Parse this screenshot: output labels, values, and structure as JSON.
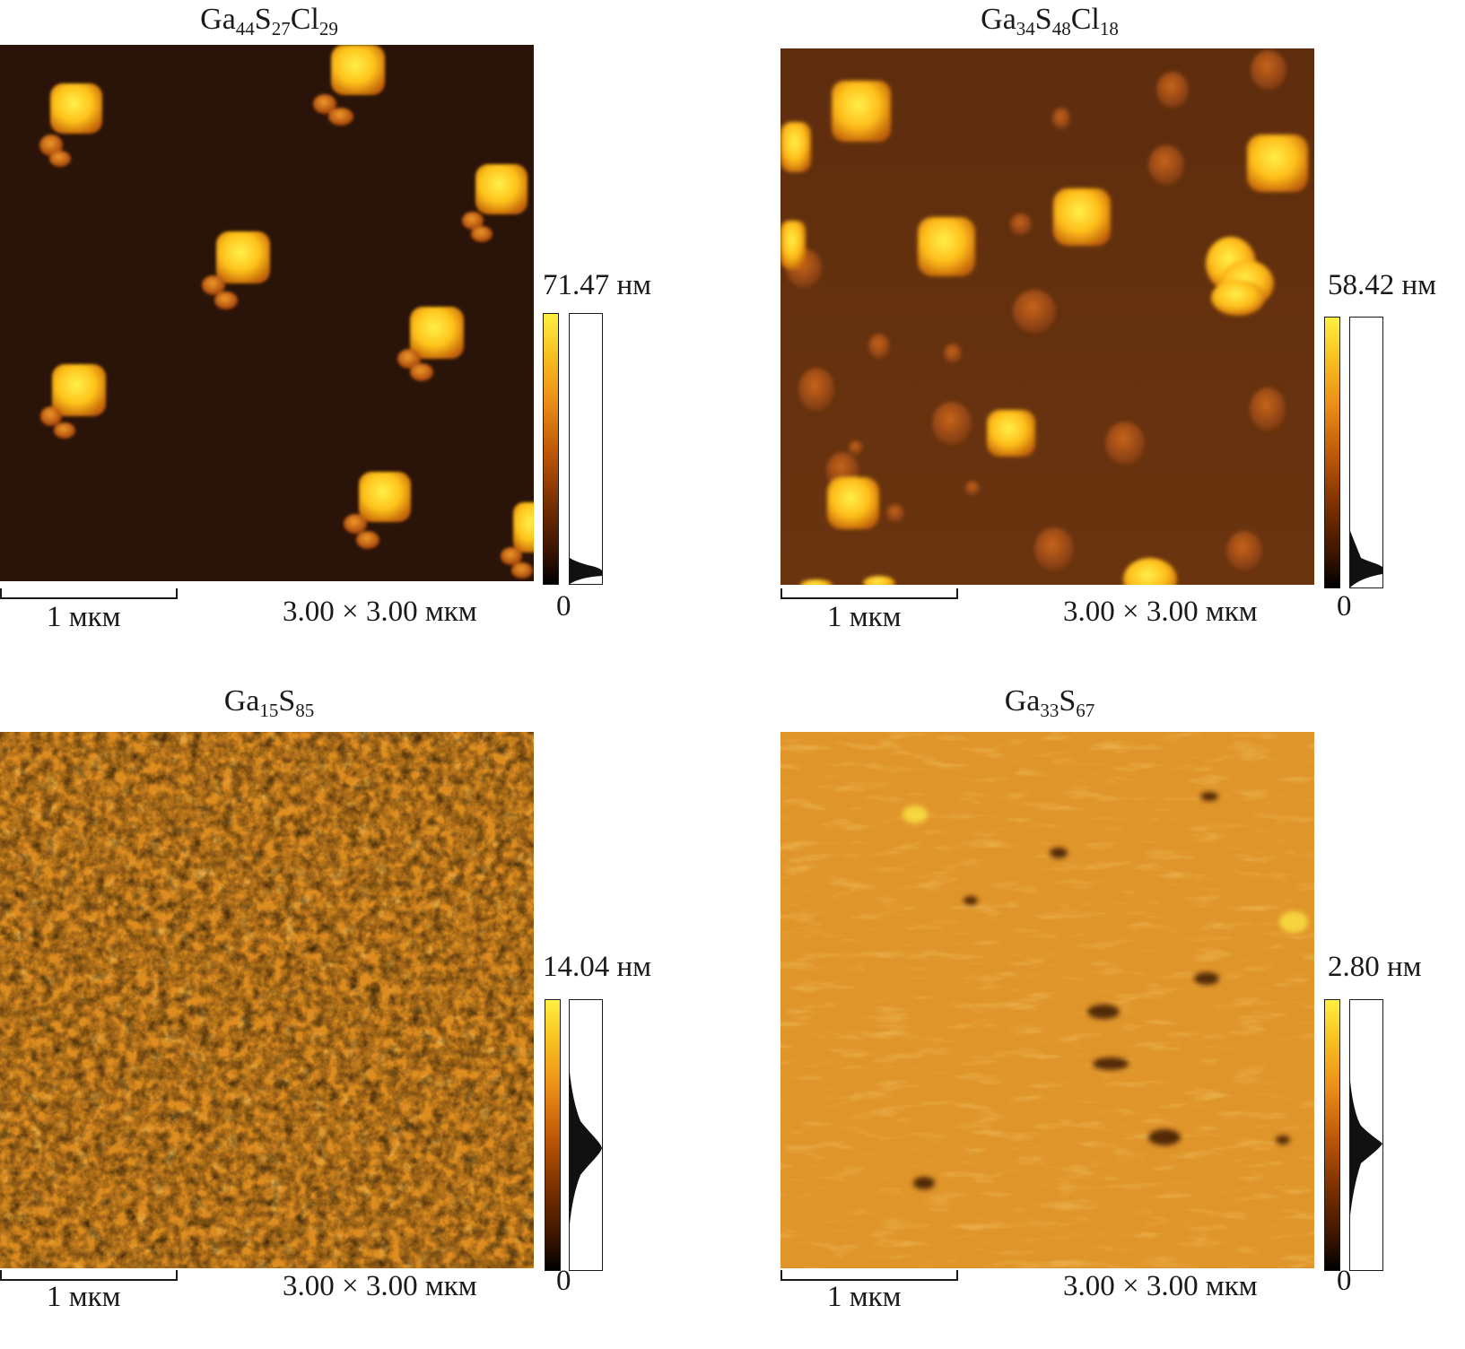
{
  "panels": [
    {
      "title": {
        "base1": "Ga",
        "sub1": "44",
        "base2": "S",
        "sub2": "27",
        "base3": "Cl",
        "sub3": "29"
      },
      "zmax_label": "71.47 нм",
      "zmin_label": "0",
      "scale_label": "1 мкм",
      "dims_label": "3.00 × 3.00 мкм",
      "surface": "sparse-square-islands",
      "background_color": "#2a1308"
    },
    {
      "title": {
        "base1": "Ga",
        "sub1": "34",
        "base2": "S",
        "sub2": "48",
        "base3": "Cl",
        "sub3": "18"
      },
      "zmax_label": "58.42 нм",
      "zmin_label": "0",
      "scale_label": "1 мкм",
      "dims_label": "3.00 × 3.00 мкм",
      "surface": "islands-and-round-droplets",
      "background_color": "#5a2a0c"
    },
    {
      "title": {
        "base1": "Ga",
        "sub1": "15",
        "base2": "S",
        "sub2": "85",
        "base3": "",
        "sub3": ""
      },
      "zmax_label": "14.04 нм",
      "zmin_label": "0",
      "scale_label": "1 мкм",
      "dims_label": "3.00 × 3.00 мкм",
      "surface": "granular-rough",
      "background_color": "#d98a1e"
    },
    {
      "title": {
        "base1": "Ga",
        "sub1": "33",
        "base2": "S",
        "sub2": "67",
        "base3": "",
        "sub3": ""
      },
      "zmax_label": "2.80 нм",
      "zmin_label": "0",
      "scale_label": "1 мкм",
      "dims_label": "3.00 × 3.00 мкм",
      "surface": "smooth-fine",
      "background_color": "#df9228"
    }
  ]
}
